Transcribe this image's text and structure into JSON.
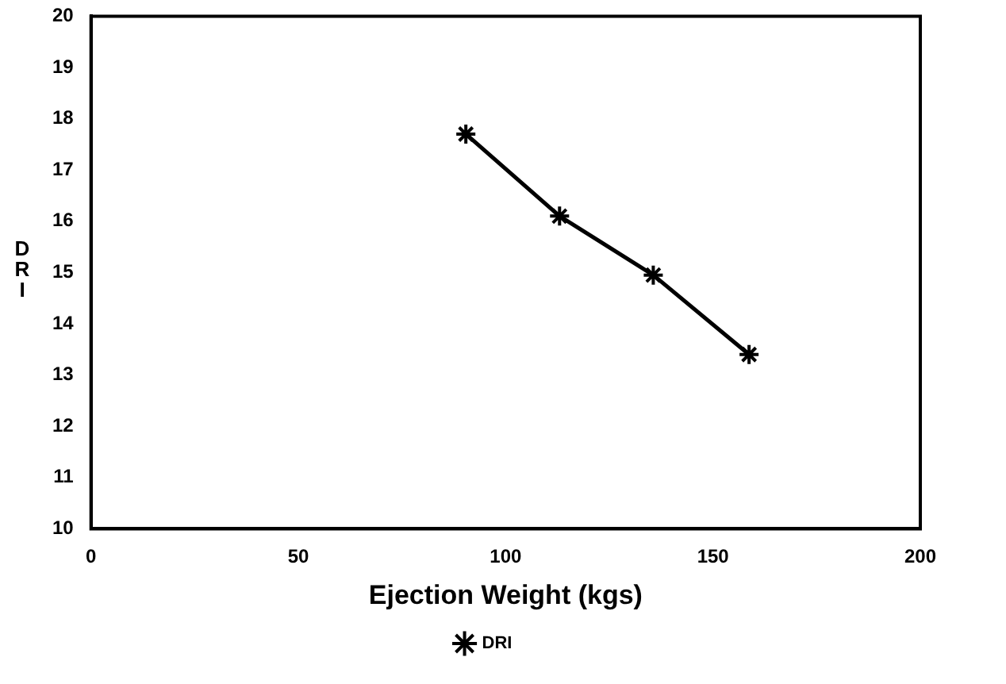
{
  "chart_data": {
    "type": "line",
    "xlabel": "Ejection Weight (kgs)",
    "ylabel": "DRI",
    "x": [
      90.4,
      113,
      135.6,
      158.7
    ],
    "series": [
      {
        "name": "DRI",
        "color": "#000000",
        "values": [
          17.7,
          16.1,
          14.95,
          13.4
        ]
      }
    ],
    "xlim": [
      0,
      200
    ],
    "xticks": [
      0,
      50,
      100,
      150,
      200
    ],
    "ylim": [
      10,
      20
    ],
    "yticks": [
      10,
      11,
      12,
      13,
      14,
      15,
      16,
      17,
      18,
      19,
      20
    ],
    "grid": false,
    "legend": "bottom",
    "marker": "cross",
    "line_style": "solid"
  }
}
